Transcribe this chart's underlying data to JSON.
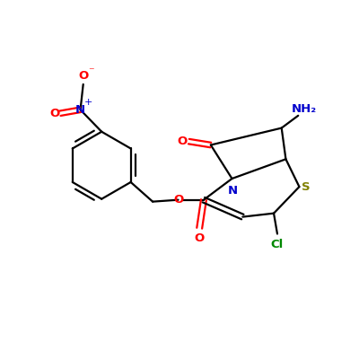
{
  "bg_color": "#ffffff",
  "bond_color": "#000000",
  "atom_colors": {
    "N": "#0000cc",
    "O": "#ff0000",
    "S": "#808000",
    "Cl": "#008800",
    "C": "#000000"
  },
  "line_width": 1.6,
  "figsize": [
    4.0,
    4.0
  ],
  "dpi": 100
}
